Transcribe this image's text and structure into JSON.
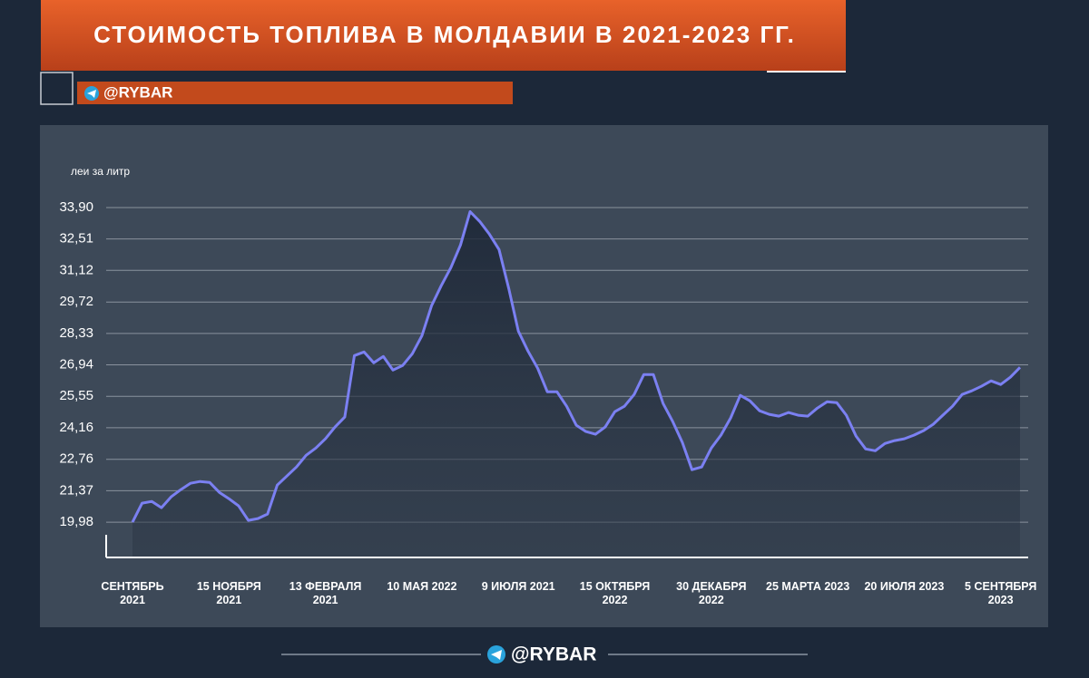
{
  "brand": "@RYBAR",
  "chart_data": {
    "type": "line",
    "title": "СТОИМОСТЬ ТОПЛИВА В МОЛДАВИИ В 2021-2023 ГГ.",
    "y_label": "леи за литр",
    "categories": [
      "СЕНТЯБРЬ 2021",
      null,
      null,
      null,
      null,
      null,
      null,
      null,
      null,
      null,
      "15 НОЯБРЯ 2021",
      null,
      null,
      null,
      null,
      null,
      null,
      null,
      null,
      null,
      "13 ФЕВРАЛЯ 2021",
      null,
      null,
      null,
      null,
      null,
      null,
      null,
      null,
      null,
      "10 МАЯ 2022",
      null,
      null,
      null,
      null,
      null,
      null,
      null,
      null,
      null,
      "9 ИЮЛЯ 2021",
      null,
      null,
      null,
      null,
      null,
      null,
      null,
      null,
      null,
      "15 ОКТЯБРЯ 2022",
      null,
      null,
      null,
      null,
      null,
      null,
      null,
      null,
      null,
      "30 ДЕКАБРЯ 2022",
      null,
      null,
      null,
      null,
      null,
      null,
      null,
      null,
      null,
      "25 МАРТА 2023",
      null,
      null,
      null,
      null,
      null,
      null,
      null,
      null,
      null,
      "20 ИЮЛЯ 2023",
      null,
      null,
      null,
      null,
      null,
      null,
      null,
      null,
      null,
      "5 СЕНТЯБРЯ 2023",
      null,
      null
    ],
    "series": [
      {
        "color": "#7b80f2",
        "values": [
          19.98,
          20.82,
          20.9,
          20.62,
          21.1,
          21.42,
          21.7,
          21.78,
          21.74,
          21.3,
          21.02,
          20.7,
          20.06,
          20.14,
          20.34,
          21.62,
          22.02,
          22.42,
          22.94,
          23.26,
          23.67,
          24.19,
          24.63,
          27.35,
          27.51,
          27.03,
          27.31,
          26.71,
          26.91,
          27.43,
          28.23,
          29.55,
          30.44,
          31.24,
          32.24,
          33.72,
          33.28,
          32.72,
          32.04,
          30.32,
          28.43,
          27.55,
          26.79,
          25.75,
          25.75,
          25.11,
          24.27,
          23.99,
          23.87,
          24.19,
          24.87,
          25.11,
          25.63,
          26.51,
          26.51,
          25.23,
          24.43,
          23.51,
          22.3,
          22.42,
          23.26,
          23.83,
          24.59,
          25.59,
          25.35,
          24.91,
          24.75,
          24.67,
          24.83,
          24.71,
          24.67,
          25.03,
          25.31,
          25.27,
          24.71,
          23.79,
          23.22,
          23.14,
          23.46,
          23.59,
          23.67,
          23.83,
          24.03,
          24.31,
          24.71,
          25.11,
          25.63,
          25.79,
          25.99,
          26.23,
          26.07,
          26.39,
          26.83
        ]
      }
    ],
    "ylim": [
      18.42,
      34.5
    ],
    "yticks": [
      {
        "value": 19.98,
        "label": "19,98"
      },
      {
        "value": 21.37,
        "label": "21,37"
      },
      {
        "value": 22.76,
        "label": "22,76"
      },
      {
        "value": 24.16,
        "label": "24,16"
      },
      {
        "value": 25.55,
        "label": "25,55"
      },
      {
        "value": 26.94,
        "label": "26,94"
      },
      {
        "value": 28.33,
        "label": "28,33"
      },
      {
        "value": 29.72,
        "label": "29,72"
      },
      {
        "value": 31.12,
        "label": "31,12"
      },
      {
        "value": 32.51,
        "label": "32,51"
      },
      {
        "value": 33.9,
        "label": "33,90"
      }
    ],
    "grid": true
  }
}
